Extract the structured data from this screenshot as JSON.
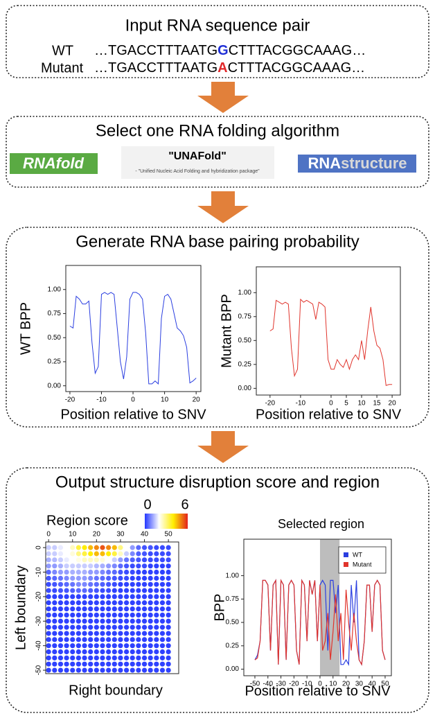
{
  "input": {
    "title": "Input RNA sequence pair",
    "rows": [
      {
        "label": "WT",
        "prefix": "…TGACCTTTAATG",
        "snv": "G",
        "suffix": "CTTTACGGCAAAG…",
        "snv_color": "#1f2fd6"
      },
      {
        "label": "Mutant",
        "prefix": "…TGACCTTTAATG",
        "snv": "A",
        "suffix": "CTTTACGGCAAAG…",
        "snv_color": "#e0282a"
      }
    ]
  },
  "algorithm": {
    "title": "Select one RNA folding algorithm",
    "rnafold": "RNAfold",
    "unafold": "\"UNAFold\"",
    "unafold_subtitle": "- \"Unified Nucleic Acid Folding and hybridization package\"",
    "rnastructure_a": "RNA",
    "rnastructure_b": "structure"
  },
  "bpp": {
    "title": "Generate RNA base pairing probability",
    "charts": [
      {
        "type": "line",
        "ylabel": "WT BPP",
        "xlabel": "Position relative to SNV",
        "color": "#2a3ee0",
        "x": [
          -20,
          -19,
          -18,
          -17,
          -16,
          -15,
          -14,
          -13,
          -12,
          -11,
          -10,
          -9,
          -8,
          -7,
          -6,
          -5,
          -4,
          -3,
          -2,
          -1,
          0,
          1,
          2,
          3,
          4,
          5,
          6,
          7,
          8,
          9,
          10,
          11,
          12,
          13,
          14,
          15,
          16,
          17,
          18,
          19,
          20
        ],
        "values": [
          0.62,
          0.6,
          0.93,
          0.9,
          0.85,
          0.85,
          0.88,
          0.45,
          0.13,
          0.2,
          0.95,
          0.97,
          0.95,
          0.97,
          0.95,
          0.6,
          0.25,
          0.07,
          0.3,
          0.9,
          0.97,
          0.97,
          0.95,
          0.9,
          0.55,
          0.02,
          0.02,
          0.05,
          0.02,
          0.7,
          0.93,
          0.95,
          0.9,
          0.75,
          0.6,
          0.57,
          0.52,
          0.4,
          0.03,
          0.05,
          0.08
        ],
        "xlim": [
          -21.3,
          21.5
        ],
        "ylim": [
          -0.06,
          1.25
        ],
        "xticks": [
          -20,
          -10,
          0,
          10,
          20
        ],
        "yticks": [
          {
            "value": 0,
            "label": "0.00"
          },
          {
            "value": 0.25,
            "label": "0.25"
          },
          {
            "value": 0.5,
            "label": "0.50"
          },
          {
            "value": 0.75,
            "label": "0.75"
          },
          {
            "value": 1,
            "label": "1.00"
          }
        ]
      },
      {
        "type": "line",
        "ylabel": "Mutant BPP",
        "xlabel": "Position relative to SNV",
        "color": "#e0342c",
        "x": [
          -20,
          -19,
          -18,
          -17,
          -16,
          -15,
          -14,
          -13,
          -12,
          -11,
          -10,
          -9,
          -8,
          -7,
          -6,
          -5,
          -4,
          -3,
          -2,
          -1,
          0,
          1,
          2,
          3,
          4,
          5,
          6,
          7,
          8,
          9,
          10,
          11,
          12,
          13,
          14,
          15,
          16,
          17,
          18,
          19,
          20
        ],
        "values": [
          0.6,
          0.62,
          0.92,
          0.9,
          0.88,
          0.9,
          0.88,
          0.42,
          0.13,
          0.2,
          0.93,
          0.9,
          0.92,
          0.9,
          0.88,
          0.72,
          0.9,
          0.88,
          0.85,
          0.3,
          0.2,
          0.2,
          0.3,
          0.25,
          0.22,
          0.3,
          0.2,
          0.3,
          0.35,
          0.3,
          0.5,
          0.3,
          0.6,
          0.85,
          0.6,
          0.45,
          0.42,
          0.3,
          0.03,
          0.04,
          0.04
        ],
        "xlim": [
          -24.5,
          22.7
        ],
        "ylim": [
          -0.07,
          1.27
        ],
        "xticks": [
          -20,
          -10,
          0,
          5,
          10,
          15,
          20
        ],
        "yticks": [
          {
            "value": 0,
            "label": "0.00"
          },
          {
            "value": 0.25,
            "label": "0.25"
          },
          {
            "value": 0.5,
            "label": "0.50"
          },
          {
            "value": 0.75,
            "label": "0.75"
          },
          {
            "value": 1,
            "label": "1.00"
          }
        ]
      }
    ]
  },
  "output": {
    "title": "Output structure disruption score and region",
    "heatmap": {
      "type": "dot-heatmap",
      "colorbar_title": "Region score",
      "colorbar_ticks": [
        0,
        6
      ],
      "colors": [
        "#2337ff",
        "#ffffff",
        "#ffee00",
        "#e3211d"
      ],
      "xlabel": "Right boundary",
      "ylabel": "Left boundary",
      "x": [
        0,
        2.5,
        5,
        7.5,
        10,
        12.5,
        15,
        17.5,
        20,
        22.5,
        25,
        27.5,
        30,
        32.5,
        35,
        37.5,
        40,
        42.5,
        45,
        47.5,
        50
      ],
      "y": [
        0,
        -2.5,
        -5,
        -7.5,
        -10,
        -12.5,
        -15,
        -17.5,
        -20,
        -22.5,
        -25,
        -27.5,
        -30,
        -32.5,
        -35,
        -37.5,
        -40,
        -42.5,
        -45,
        -47.5,
        -50
      ],
      "values": [
        [
          1.5,
          1.5,
          1.8,
          2,
          2.5,
          3.5,
          4,
          4.5,
          5,
          5.5,
          5,
          4.5,
          3,
          2,
          1,
          0.5,
          0.3,
          0.3,
          0.2,
          0.2,
          0.2
        ],
        [
          1.5,
          1.5,
          1.8,
          2,
          2.3,
          3,
          3.5,
          4,
          4.5,
          4.5,
          4,
          3.5,
          2.5,
          1.5,
          0.8,
          0.4,
          0.3,
          0.2,
          0.2,
          0.2,
          0.2
        ],
        [
          1.2,
          1.3,
          1.5,
          1.8,
          2,
          2.2,
          2.5,
          2.5,
          2.5,
          2.3,
          2,
          1.5,
          1,
          0.6,
          0.4,
          0.3,
          0.2,
          0.2,
          0.2,
          0.2,
          0.2
        ],
        [
          1,
          1,
          1.2,
          1.5,
          1.5,
          1.5,
          1.5,
          1.5,
          1.3,
          1.2,
          1,
          0.8,
          0.5,
          0.3,
          0.2,
          0.2,
          0.2,
          0.1,
          0.1,
          0.1,
          0.1
        ],
        [
          0.5,
          0.8,
          1,
          1,
          1.2,
          1.2,
          1.2,
          1,
          1,
          0.8,
          0.6,
          0.5,
          0.3,
          0.2,
          0.2,
          0.1,
          0.1,
          0.1,
          0.1,
          0.1,
          0.1
        ],
        [
          0.3,
          0.5,
          0.6,
          0.8,
          1,
          1,
          1,
          0.8,
          0.6,
          0.5,
          0.4,
          0.3,
          0.2,
          0.2,
          0.1,
          0.1,
          0.1,
          0.1,
          0.1,
          0.1,
          0.1
        ],
        [
          0.2,
          0.3,
          0.4,
          0.5,
          0.6,
          0.8,
          0.8,
          0.6,
          0.5,
          0.4,
          0.3,
          0.2,
          0.1,
          0.1,
          0.1,
          0.1,
          0.1,
          0.1,
          0.1,
          0.1,
          0.1
        ],
        [
          0.2,
          0.2,
          0.3,
          0.3,
          0.4,
          0.5,
          0.5,
          0.4,
          0.3,
          0.2,
          0.2,
          0.1,
          0.1,
          0.1,
          0.1,
          0.1,
          0.1,
          0.1,
          0.1,
          0.1,
          0.1
        ],
        [
          0.1,
          0.1,
          0.1,
          0.1,
          0.1,
          0.1,
          0.1,
          0.1,
          0.1,
          0.1,
          0.1,
          0.1,
          0.1,
          0.1,
          0.1,
          0.1,
          0.1,
          0.1,
          0.1,
          0.1,
          0.1
        ],
        [
          0.1,
          0.1,
          0.1,
          0.1,
          0.1,
          0.1,
          0.1,
          0.1,
          0.1,
          0.1,
          0.1,
          0.1,
          0.1,
          0.1,
          0.1,
          0.1,
          0.1,
          0.1,
          0.1,
          0.1,
          0.1
        ],
        [
          0.1,
          0.1,
          0.1,
          0.1,
          0.1,
          0.1,
          0.1,
          0.1,
          0.1,
          0.1,
          0.1,
          0.1,
          0.1,
          0.1,
          0.1,
          0.1,
          0.1,
          0.1,
          0.1,
          0.1,
          0.1
        ],
        [
          0.1,
          0.1,
          0.1,
          0.1,
          0.1,
          0.1,
          0.1,
          0.1,
          0.1,
          0.1,
          0.1,
          0.1,
          0.1,
          0.1,
          0.1,
          0.1,
          0.1,
          0.1,
          0.1,
          0.1,
          0.1
        ],
        [
          0.1,
          0.1,
          0.1,
          0.1,
          0.1,
          0.1,
          0.1,
          0.1,
          0.1,
          0.1,
          0.1,
          0.1,
          0.1,
          0.1,
          0.1,
          0.1,
          0.1,
          0.1,
          0.1,
          0.1,
          0.1
        ],
        [
          0.1,
          0.1,
          0.1,
          0.1,
          0.1,
          0.1,
          0.1,
          0.1,
          0.1,
          0.1,
          0.1,
          0.1,
          0.1,
          0.1,
          0.1,
          0.1,
          0.1,
          0.1,
          0.1,
          0.1,
          0.1
        ],
        [
          0.1,
          0.1,
          0.1,
          0.1,
          0.1,
          0.1,
          0.1,
          0.1,
          0.1,
          0.1,
          0.1,
          0.1,
          0.1,
          0.1,
          0.1,
          0.1,
          0.1,
          0.1,
          0.1,
          0.1,
          0.1
        ],
        [
          0.1,
          0.1,
          0.1,
          0.1,
          0.1,
          0.1,
          0.1,
          0.1,
          0.1,
          0.1,
          0.1,
          0.1,
          0.1,
          0.1,
          0.1,
          0.1,
          0.1,
          0.1,
          0.1,
          0.1,
          0.1
        ],
        [
          0.1,
          0.1,
          0.1,
          0.1,
          0.1,
          0.1,
          0.1,
          0.1,
          0.1,
          0.1,
          0.1,
          0.1,
          0.1,
          0.1,
          0.1,
          0.1,
          0.1,
          0.1,
          0.1,
          0.1,
          0.1
        ],
        [
          0.1,
          0.1,
          0.1,
          0.1,
          0.1,
          0.1,
          0.1,
          0.1,
          0.1,
          0.1,
          0.1,
          0.1,
          0.1,
          0.1,
          0.1,
          0.1,
          0.1,
          0.1,
          0.1,
          0.1,
          0.1
        ],
        [
          0.1,
          0.1,
          0.1,
          0.1,
          0.1,
          0.1,
          0.1,
          0.1,
          0.1,
          0.1,
          0.1,
          0.1,
          0.1,
          0.1,
          0.1,
          0.1,
          0.1,
          0.1,
          0.1,
          0.1,
          0.1
        ],
        [
          0.1,
          0.1,
          0.1,
          0.1,
          0.1,
          0.1,
          0.1,
          0.1,
          0.1,
          0.1,
          0.1,
          0.1,
          0.1,
          0.1,
          0.1,
          0.1,
          0.1,
          0.1,
          0.1,
          0.1,
          0.1
        ],
        [
          0.1,
          0.1,
          0.1,
          0.1,
          0.1,
          0.1,
          0.1,
          0.1,
          0.1,
          0.1,
          0.1,
          0.1,
          0.1,
          0.1,
          0.1,
          0.1,
          0.1,
          0.1,
          0.1,
          0.1,
          0.1
        ]
      ],
      "xlim": [
        -1.2,
        54.3
      ],
      "ylim": [
        -51.4,
        2.3
      ],
      "xticks": [
        0,
        10,
        20,
        30,
        40,
        50
      ],
      "yticks": [
        0,
        -10,
        -20,
        -30,
        -40,
        -50
      ]
    },
    "region_chart": {
      "type": "line",
      "title": "Selected region",
      "ylabel": "BPP",
      "xlabel": "Position relative to SNV",
      "legend": "top-right",
      "region": [
        0,
        15
      ],
      "region_color": "#bdbdbd",
      "x": [
        -50,
        -48,
        -46,
        -44,
        -42,
        -40,
        -38,
        -36,
        -34,
        -32,
        -30,
        -28,
        -26,
        -24,
        -22,
        -20,
        -18,
        -16,
        -14,
        -12,
        -10,
        -8,
        -6,
        -4,
        -2,
        0,
        2,
        4,
        6,
        8,
        10,
        12,
        14,
        16,
        18,
        20,
        22,
        24,
        26,
        28,
        30,
        32,
        34,
        36,
        38,
        40,
        42,
        44,
        46,
        48,
        50
      ],
      "series": [
        {
          "name": "WT",
          "color": "#2a3ee0",
          "values": [
            0.1,
            0.15,
            0.3,
            0.95,
            0.95,
            0.9,
            0.2,
            0.9,
            0.95,
            0.05,
            0.95,
            0.9,
            0.1,
            0.9,
            0.95,
            0.9,
            0.2,
            0.05,
            0.95,
            0.9,
            0.3,
            0.95,
            0.8,
            0.95,
            0.3,
            0.9,
            0.95,
            0.9,
            0.2,
            0.95,
            0.95,
            0.6,
            0.9,
            0.05,
            0.05,
            0.1,
            0.05,
            0.9,
            0.5,
            0.95,
            0.1,
            0.05,
            0.3,
            0.9,
            0.9,
            0.4,
            0.9,
            0.95,
            0.9,
            0.2,
            0.1
          ]
        },
        {
          "name": "Mutant",
          "color": "#e0342c",
          "values": [
            0.1,
            0.12,
            0.3,
            0.95,
            0.95,
            0.9,
            0.2,
            0.9,
            0.95,
            0.05,
            0.95,
            0.9,
            0.1,
            0.9,
            0.95,
            0.9,
            0.2,
            0.05,
            0.95,
            0.9,
            0.3,
            0.95,
            0.8,
            0.95,
            0.3,
            0.9,
            0.2,
            0.3,
            0.6,
            0.1,
            0.4,
            0.8,
            0.3,
            0.6,
            0.1,
            0.85,
            0.5,
            0.2,
            0.6,
            0.3,
            0.1,
            0.05,
            0.3,
            0.9,
            0.9,
            0.4,
            0.9,
            0.95,
            0.9,
            0.2,
            0.1
          ]
        }
      ],
      "xlim": [
        -58.5,
        54.8
      ],
      "ylim": [
        -0.07,
        1.39
      ],
      "xticks": [
        -50,
        -40,
        -30,
        -20,
        -10,
        0,
        10,
        20,
        30,
        40,
        50
      ],
      "yticks": [
        {
          "value": 0,
          "label": "0.00"
        },
        {
          "value": 0.25,
          "label": "0.25"
        },
        {
          "value": 0.5,
          "label": "0.50"
        },
        {
          "value": 0.75,
          "label": "0.75"
        },
        {
          "value": 1,
          "label": "1.00"
        }
      ]
    }
  }
}
